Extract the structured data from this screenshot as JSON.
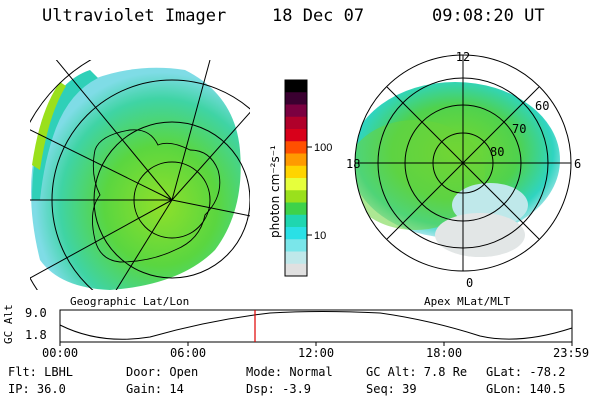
{
  "header": {
    "instrument": "Ultraviolet Imager",
    "date": "18 Dec 07",
    "time": "09:08:20 UT"
  },
  "left_map": {
    "label": "Geographic Lat/Lon"
  },
  "right_map": {
    "label": "Apex MLat/MLT",
    "mlt_labels": {
      "top": "12",
      "left": "18",
      "right": "6",
      "bottom": "0"
    },
    "lat_labels": [
      "60",
      "70",
      "80"
    ]
  },
  "colorbar": {
    "unit_label": "photon cm⁻²s⁻¹",
    "ticks": [
      "100",
      "10"
    ],
    "colors": [
      "#000000",
      "#3a0030",
      "#7a0040",
      "#b0002a",
      "#d8001a",
      "#ff5000",
      "#ff9a00",
      "#ffd400",
      "#e6ff3c",
      "#9ae01c",
      "#3ed24a",
      "#1fd6b0",
      "#2ae0e6",
      "#7ae6ea",
      "#bfe8ea",
      "#e0e0e0"
    ]
  },
  "altitude_plot": {
    "ylabel": "GC Alt",
    "yticks": [
      "9.0",
      "1.8"
    ],
    "xticks": [
      "00:00",
      "06:00",
      "12:00",
      "18:00",
      "23:59"
    ],
    "current_time_hours": 9.14
  },
  "status": {
    "flt": "Flt: LBHL",
    "ip": "IP: 36.0",
    "door": "Door: Open",
    "gain": "Gain: 14",
    "mode": "Mode: Normal",
    "dsp": "Dsp:    -3.9",
    "gcalt": "GC Alt: 7.8 Re",
    "seq": "Seq: 39",
    "glat": "GLat: -78.2",
    "glon": "GLon: 140.5"
  }
}
